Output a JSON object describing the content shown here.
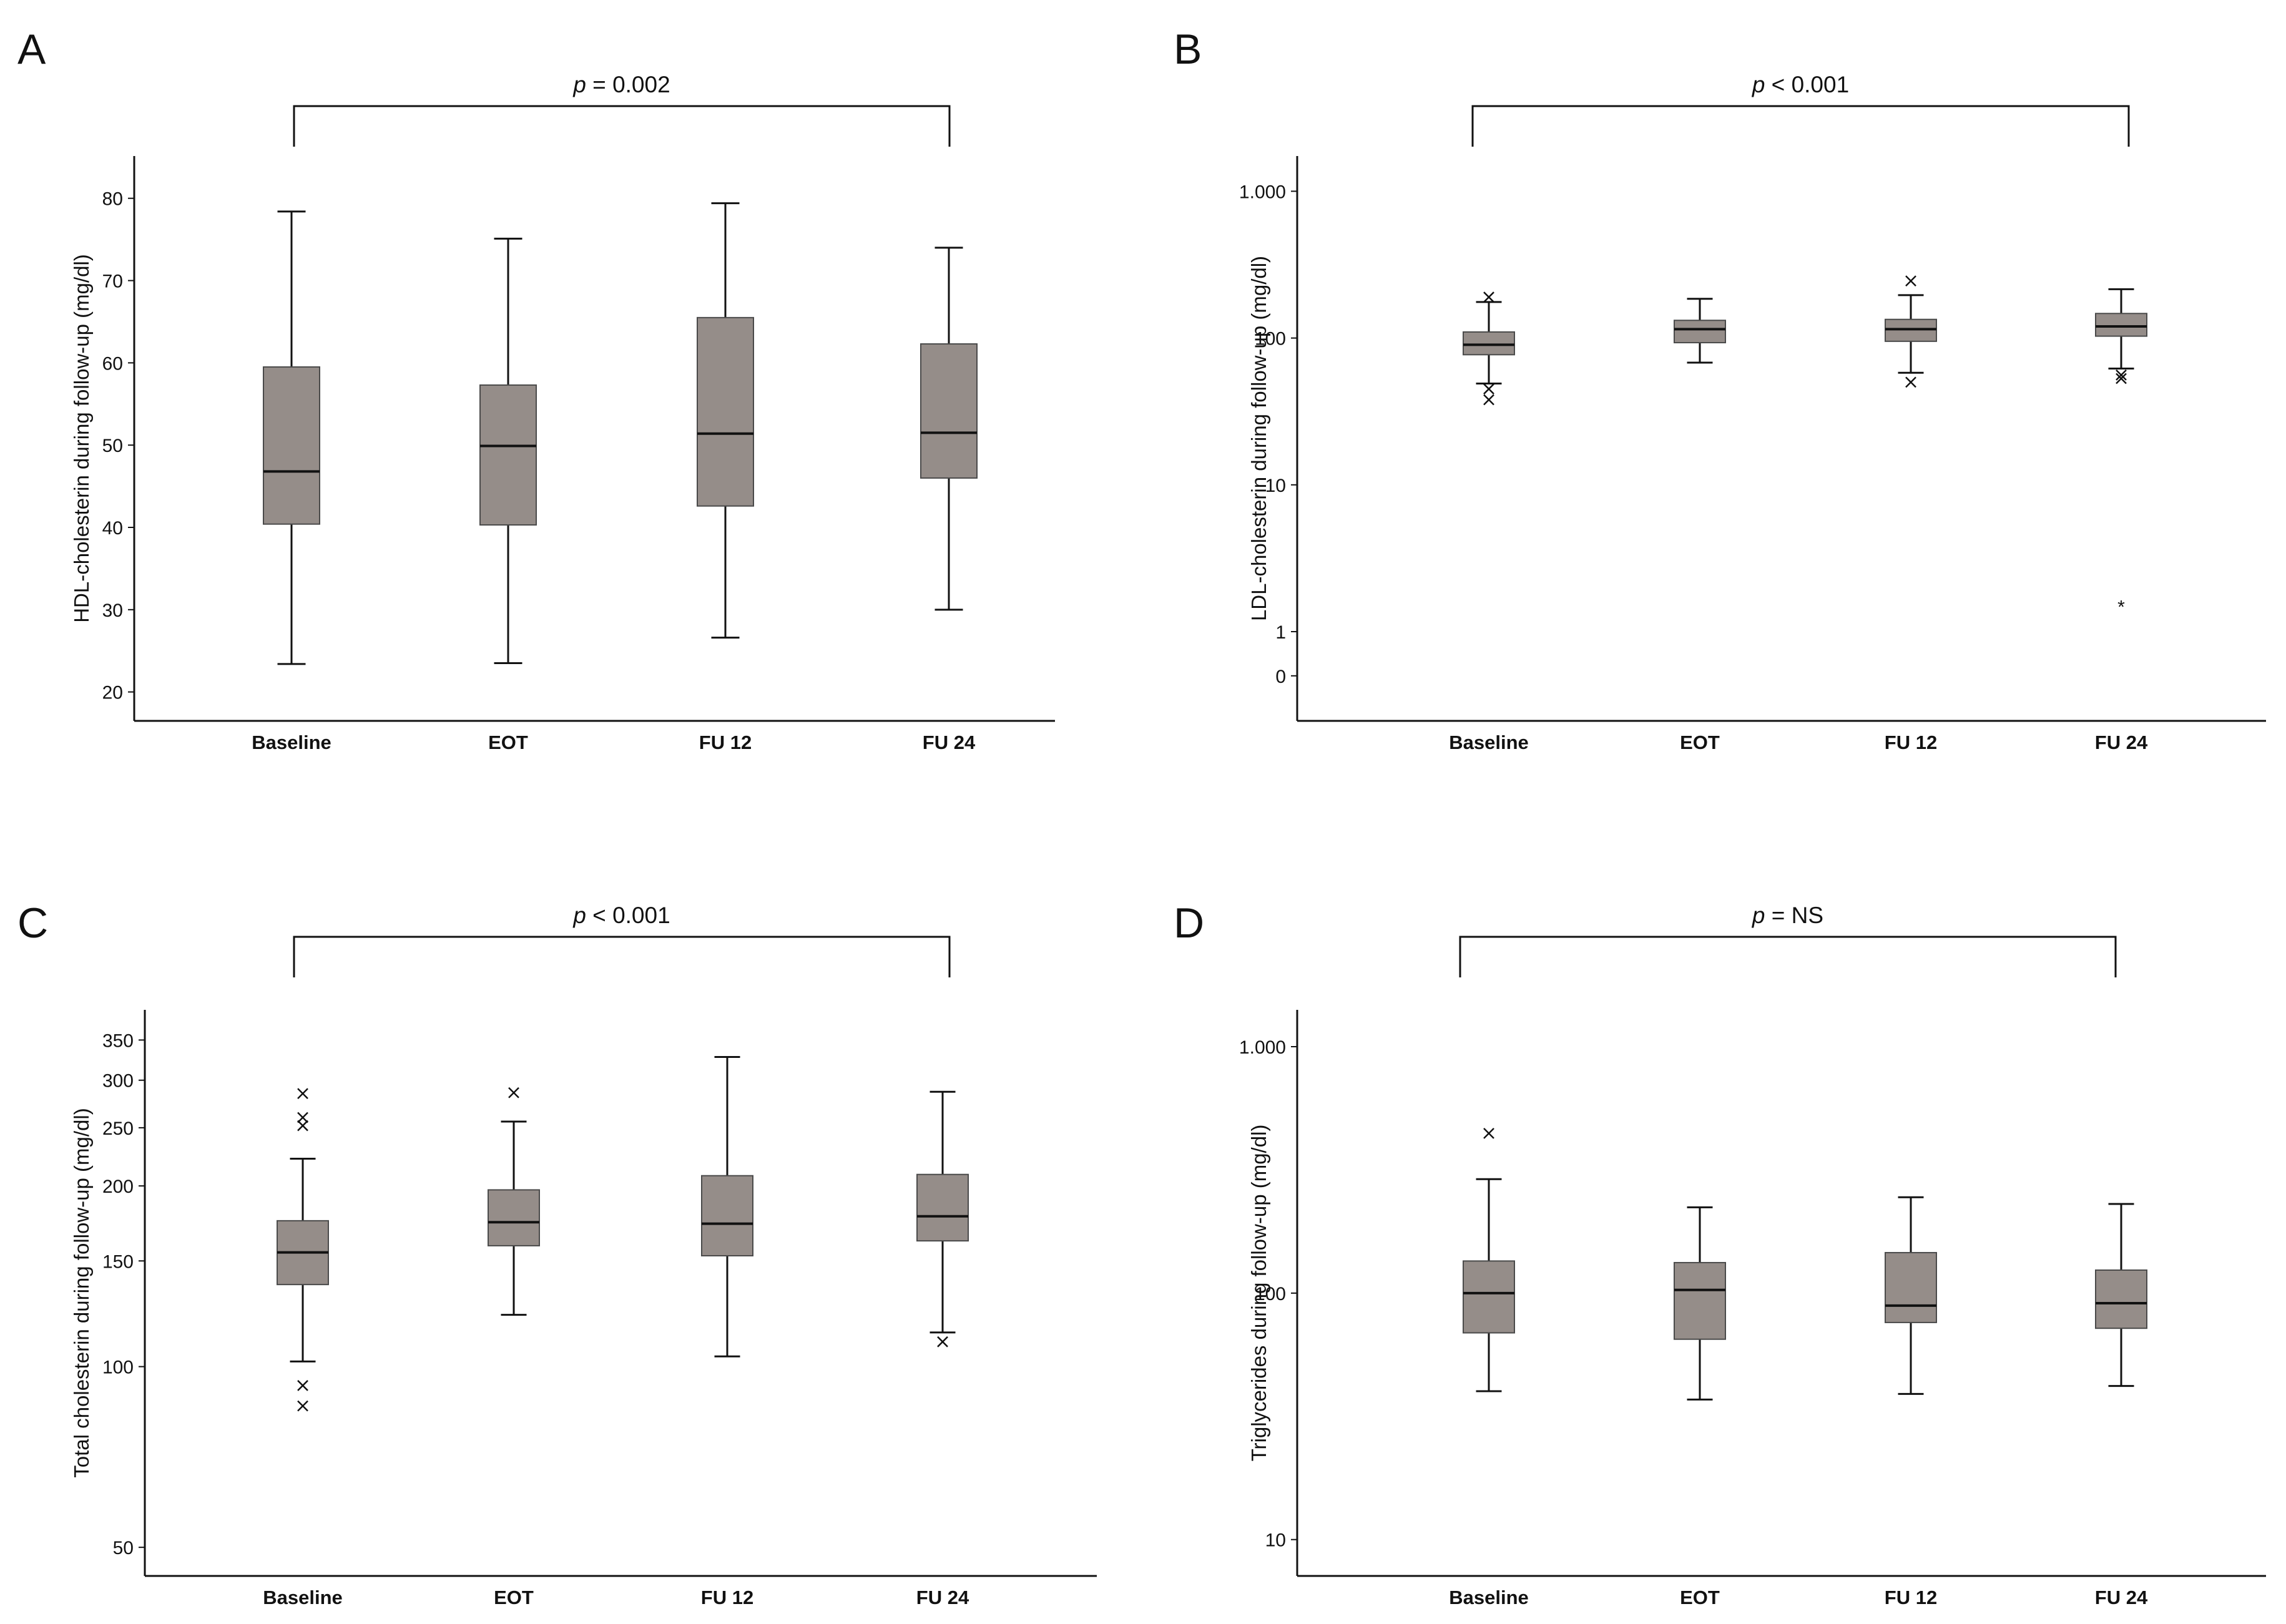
{
  "figure": {
    "colors": {
      "box_fill": "#958d89",
      "box_stroke": "#4a4a4a",
      "ink": "#111111",
      "background": "#ffffff"
    }
  },
  "chart_data": [
    {
      "panel": "A",
      "type": "boxplot",
      "yscale": "linear",
      "ylabel": "HDL-cholesterin during follow-up (mg/dl)",
      "ylim": [
        18,
        84
      ],
      "yticks": [
        20,
        30,
        40,
        50,
        60,
        70,
        80
      ],
      "ytick_labels": [
        "20",
        "30",
        "40",
        "50",
        "60",
        "70",
        "80"
      ],
      "categories": [
        "Baseline",
        "EOT",
        "FU 12",
        "FU 24"
      ],
      "pvalue": {
        "label": "p",
        "text": " = 0.002",
        "from": "Baseline",
        "to": "FU 24"
      },
      "boxes": [
        {
          "category": "Baseline",
          "whisker_low": 23.4,
          "q1": 40.4,
          "median": 46.8,
          "q3": 59.5,
          "whisker_high": 78.4,
          "outliers": []
        },
        {
          "category": "EOT",
          "whisker_low": 23.5,
          "q1": 40.3,
          "median": 49.9,
          "q3": 57.3,
          "whisker_high": 75.1,
          "outliers": []
        },
        {
          "category": "FU 12",
          "whisker_low": 26.6,
          "q1": 42.6,
          "median": 51.4,
          "q3": 65.5,
          "whisker_high": 79.4,
          "outliers": []
        },
        {
          "category": "FU 24",
          "whisker_low": 30.0,
          "q1": 46.0,
          "median": 51.5,
          "q3": 62.3,
          "whisker_high": 74.0,
          "outliers": []
        }
      ]
    },
    {
      "panel": "B",
      "type": "boxplot",
      "yscale": "log",
      "ylabel": "LDL-cholesterin during follow-up (mg/dl)",
      "ylim": [
        0.3,
        1500
      ],
      "yticks": [
        0.5,
        1,
        10,
        100,
        1000
      ],
      "ytick_labels": [
        "0",
        "1",
        "10",
        "100",
        "1.000"
      ],
      "categories": [
        "Baseline",
        "EOT",
        "FU 12",
        "FU 24"
      ],
      "pvalue": {
        "label": "p",
        "text": " < 0.001",
        "from": "Baseline",
        "to": "FU 24"
      },
      "boxes": [
        {
          "category": "Baseline",
          "whisker_low": 49,
          "q1": 77,
          "median": 90,
          "q3": 110,
          "whisker_high": 176,
          "outliers": [
            {
              "value": 190,
              "marker": "x"
            },
            {
              "value": 45,
              "marker": "x"
            },
            {
              "value": 38,
              "marker": "x"
            }
          ]
        },
        {
          "category": "EOT",
          "whisker_low": 68,
          "q1": 93,
          "median": 115,
          "q3": 132,
          "whisker_high": 185,
          "outliers": []
        },
        {
          "category": "FU 12",
          "whisker_low": 58,
          "q1": 95,
          "median": 115,
          "q3": 134,
          "whisker_high": 196,
          "outliers": [
            {
              "value": 245,
              "marker": "x"
            },
            {
              "value": 50,
              "marker": "x"
            }
          ]
        },
        {
          "category": "FU 24",
          "whisker_low": 62,
          "q1": 103,
          "median": 120,
          "q3": 147,
          "whisker_high": 215,
          "outliers": [
            {
              "value": 56,
              "marker": "x"
            },
            {
              "value": 53,
              "marker": "x"
            },
            {
              "value": 1.5,
              "marker": "*"
            }
          ]
        }
      ]
    },
    {
      "panel": "C",
      "type": "boxplot",
      "yscale": "log",
      "ylabel": "Total cholesterin during follow-up (mg/dl)",
      "ylim": [
        47,
        380
      ],
      "yticks": [
        50,
        100,
        150,
        200,
        250,
        300,
        350
      ],
      "ytick_labels": [
        "50",
        "100",
        "150",
        "200",
        "250",
        "300",
        "350"
      ],
      "categories": [
        "Baseline",
        "EOT",
        "FU 12",
        "FU 24"
      ],
      "pvalue": {
        "label": "p",
        "text": " < 0.001",
        "from": "Baseline",
        "to": "FU 24"
      },
      "boxes": [
        {
          "category": "Baseline",
          "whisker_low": 102,
          "q1": 137,
          "median": 155,
          "q3": 175,
          "whisker_high": 222,
          "outliers": [
            {
              "value": 285,
              "marker": "x"
            },
            {
              "value": 260,
              "marker": "x"
            },
            {
              "value": 252,
              "marker": "x"
            },
            {
              "value": 93,
              "marker": "x"
            },
            {
              "value": 86,
              "marker": "x"
            }
          ]
        },
        {
          "category": "EOT",
          "whisker_low": 122,
          "q1": 159,
          "median": 174,
          "q3": 197,
          "whisker_high": 256,
          "outliers": [
            {
              "value": 286,
              "marker": "x"
            }
          ]
        },
        {
          "category": "FU 12",
          "whisker_low": 104,
          "q1": 153,
          "median": 173,
          "q3": 208,
          "whisker_high": 328,
          "outliers": []
        },
        {
          "category": "FU 24",
          "whisker_low": 114,
          "q1": 162,
          "median": 178,
          "q3": 209,
          "whisker_high": 287,
          "outliers": [
            {
              "value": 110,
              "marker": "x"
            }
          ]
        }
      ]
    },
    {
      "panel": "D",
      "type": "boxplot",
      "yscale": "log",
      "ylabel": "Triglycerides during follow-up (mg/dl)",
      "ylim": [
        8,
        1300
      ],
      "yticks": [
        10,
        100,
        1000
      ],
      "ytick_labels": [
        "10",
        "100",
        "1.000"
      ],
      "categories": [
        "Baseline",
        "EOT",
        "FU 12",
        "FU 24"
      ],
      "pvalue": {
        "label": "p",
        "text": " = NS",
        "from": "Baseline",
        "to": "FU 24"
      },
      "boxes": [
        {
          "category": "Baseline",
          "whisker_low": 40,
          "q1": 69,
          "median": 100,
          "q3": 135,
          "whisker_high": 290,
          "outliers": [
            {
              "value": 445,
              "marker": "x"
            }
          ]
        },
        {
          "category": "EOT",
          "whisker_low": 37,
          "q1": 65,
          "median": 103,
          "q3": 133,
          "whisker_high": 223,
          "outliers": []
        },
        {
          "category": "FU 12",
          "whisker_low": 39,
          "q1": 76,
          "median": 89,
          "q3": 146,
          "whisker_high": 245,
          "outliers": []
        },
        {
          "category": "FU 24",
          "whisker_low": 42,
          "q1": 72,
          "median": 91,
          "q3": 124,
          "whisker_high": 230,
          "outliers": []
        }
      ]
    }
  ]
}
